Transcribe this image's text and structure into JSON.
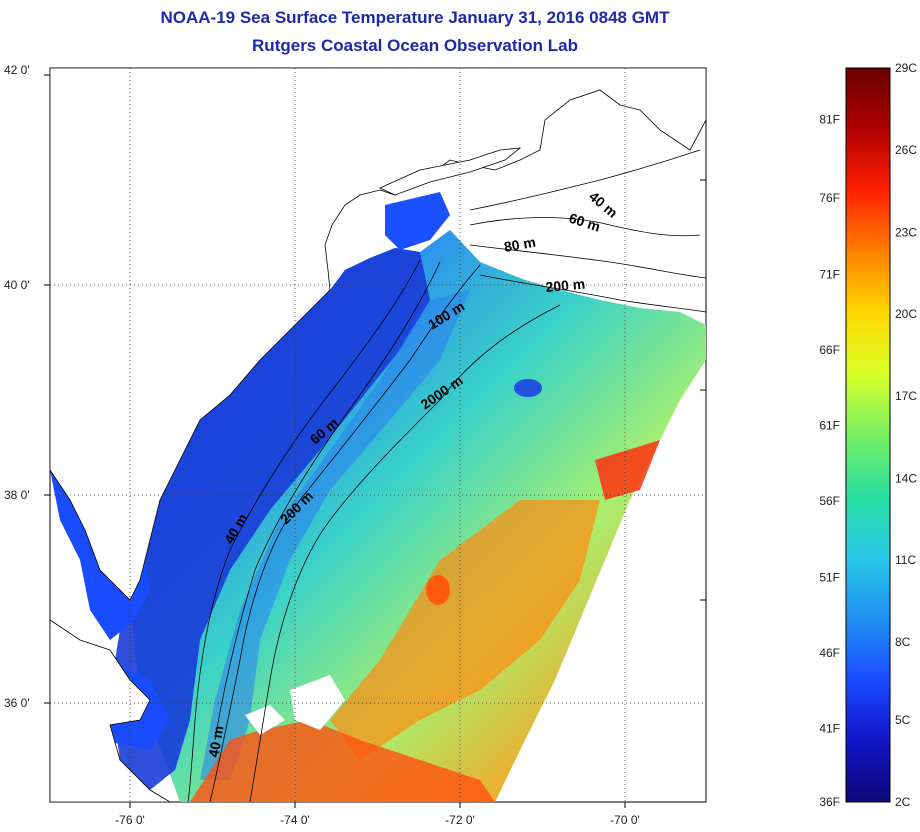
{
  "header": {
    "title": "NOAA-19 Sea Surface Temperature January 31, 2016 0848 GMT",
    "subtitle": "Rutgers Coastal Ocean Observation Lab"
  },
  "axes": {
    "lat_labels": [
      "42 0'",
      "40 0'",
      "38 0'",
      "36 0'"
    ],
    "lon_labels": [
      "-76 0'",
      "-74 0'",
      "-72 0'",
      "-70 0'"
    ]
  },
  "contours": {
    "north": [
      "40 m",
      "60 m",
      "80 m",
      "200 m",
      "100 m",
      "2000 m"
    ],
    "south": [
      "60 m",
      "40 m",
      "200 m",
      "40 m"
    ]
  },
  "colorbar": {
    "fahrenheit": [
      "81F",
      "76F",
      "71F",
      "66F",
      "61F",
      "56F",
      "51F",
      "46F",
      "41F",
      "36F"
    ],
    "celsius": [
      "29C",
      "26C",
      "23C",
      "20C",
      "17C",
      "14C",
      "11C",
      "8C",
      "5C",
      "2C"
    ],
    "colors": [
      "#6b0000",
      "#b00000",
      "#ff2000",
      "#ff8000",
      "#ffd800",
      "#d8ff28",
      "#78f060",
      "#28e0a0",
      "#28c8e8",
      "#2090f0",
      "#1a4cff",
      "#1414c8",
      "#0a0a78"
    ]
  }
}
